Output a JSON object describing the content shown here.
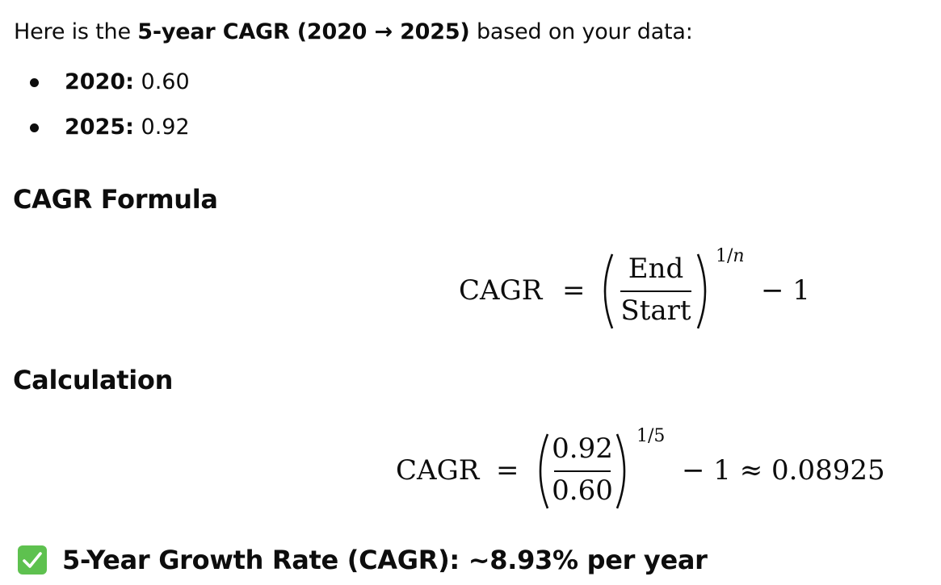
{
  "intro": {
    "prefix": "Here is the ",
    "emphasis": "5-year CAGR (2020 → 2025)",
    "suffix": " based on your data:"
  },
  "data_points": [
    {
      "year_label": "2020:",
      "value": "0.60"
    },
    {
      "year_label": "2025:",
      "value": "0.92"
    }
  ],
  "formula_section": {
    "heading": "CAGR Formula",
    "lhs": "CAGR",
    "equals": "=",
    "numerator": "End",
    "denominator": "Start",
    "exponent_prefix": "1/",
    "exponent_var": "n",
    "minus_one": "− 1"
  },
  "calculation_section": {
    "heading": "Calculation",
    "lhs": "CAGR",
    "equals": "=",
    "numerator": "0.92",
    "denominator": "0.60",
    "exponent": "1/5",
    "rest": "− 1 ≈ 0.08925"
  },
  "result": {
    "icon": "check-mark-button-icon",
    "icon_color": "#5ec14f",
    "text": "5-Year Growth Rate (CAGR): ~8.93% per year"
  }
}
